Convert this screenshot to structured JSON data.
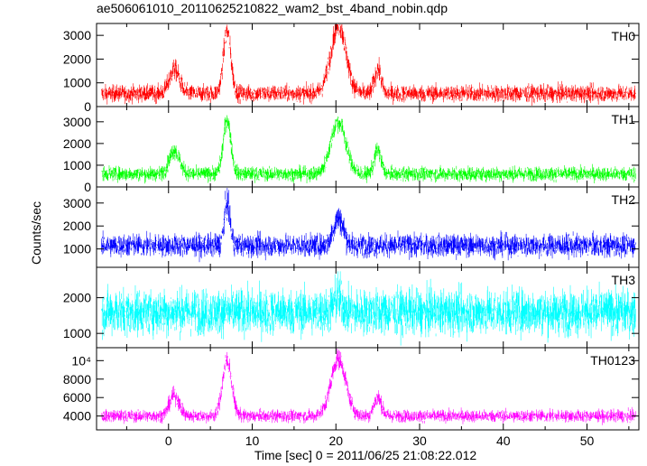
{
  "chart_data": {
    "type": "line",
    "title": "ae506061010_20110625210822_wam2_bst_4band_nobin.qdp",
    "xlabel": "Time [sec] 0 = 2011/06/25 21:08:22.012",
    "ylabel": "Counts/sec",
    "xlim": [
      -8.6,
      56.2
    ],
    "x_ticks": [
      0,
      10,
      20,
      30,
      40,
      50
    ],
    "grid": false,
    "panels": [
      {
        "name": "TH0",
        "color": "#ff0000",
        "ylim": [
          0,
          3500
        ],
        "y_ticks": [
          0,
          1000,
          2000,
          3000
        ],
        "y_tick_labels": [
          "0",
          "1000",
          "2000",
          "3000"
        ],
        "baseline": 550,
        "noise": 350,
        "peaks": [
          {
            "t": 0.7,
            "amp": 1000,
            "w": 0.6
          },
          {
            "t": 7.0,
            "amp": 2600,
            "w": 0.45
          },
          {
            "t": 20.3,
            "amp": 2900,
            "w": 0.9
          },
          {
            "t": 25.0,
            "amp": 1000,
            "w": 0.4
          }
        ]
      },
      {
        "name": "TH1",
        "color": "#00ff00",
        "ylim": [
          0,
          3700
        ],
        "y_ticks": [
          0,
          1000,
          2000,
          3000
        ],
        "y_tick_labels": [
          "0",
          "1000",
          "2000",
          "3000"
        ],
        "baseline": 600,
        "noise": 320,
        "peaks": [
          {
            "t": 0.7,
            "amp": 1100,
            "w": 0.6
          },
          {
            "t": 7.0,
            "amp": 2500,
            "w": 0.45
          },
          {
            "t": 20.3,
            "amp": 2400,
            "w": 0.9
          },
          {
            "t": 25.0,
            "amp": 1100,
            "w": 0.4
          }
        ]
      },
      {
        "name": "TH2",
        "color": "#0000ff",
        "ylim": [
          200,
          3700
        ],
        "y_ticks": [
          1000,
          2000,
          3000
        ],
        "y_tick_labels": [
          "1000",
          "2000",
          "3000"
        ],
        "baseline": 1150,
        "noise": 480,
        "peaks": [
          {
            "t": 7.0,
            "amp": 1800,
            "w": 0.35
          },
          {
            "t": 20.3,
            "amp": 1200,
            "w": 0.6
          }
        ]
      },
      {
        "name": "TH3",
        "color": "#00ffff",
        "ylim": [
          600,
          2850
        ],
        "y_ticks": [
          1000,
          2000
        ],
        "y_tick_labels": [
          "1000",
          "2000"
        ],
        "baseline": 1600,
        "noise": 620,
        "peaks": [
          {
            "t": 20.3,
            "amp": 400,
            "w": 0.5
          }
        ]
      },
      {
        "name": "TH0123",
        "color": "#ff00ff",
        "ylim": [
          2500,
          11400
        ],
        "y_ticks": [
          4000,
          6000,
          8000,
          10000
        ],
        "y_tick_labels": [
          "4000",
          "6000",
          "8000",
          "10⁴"
        ],
        "baseline": 4000,
        "noise": 650,
        "peaks": [
          {
            "t": 0.7,
            "amp": 2200,
            "w": 0.6
          },
          {
            "t": 7.0,
            "amp": 6000,
            "w": 0.55
          },
          {
            "t": 20.3,
            "amp": 6200,
            "w": 0.9
          },
          {
            "t": 25.0,
            "amp": 2000,
            "w": 0.45
          }
        ]
      }
    ]
  }
}
